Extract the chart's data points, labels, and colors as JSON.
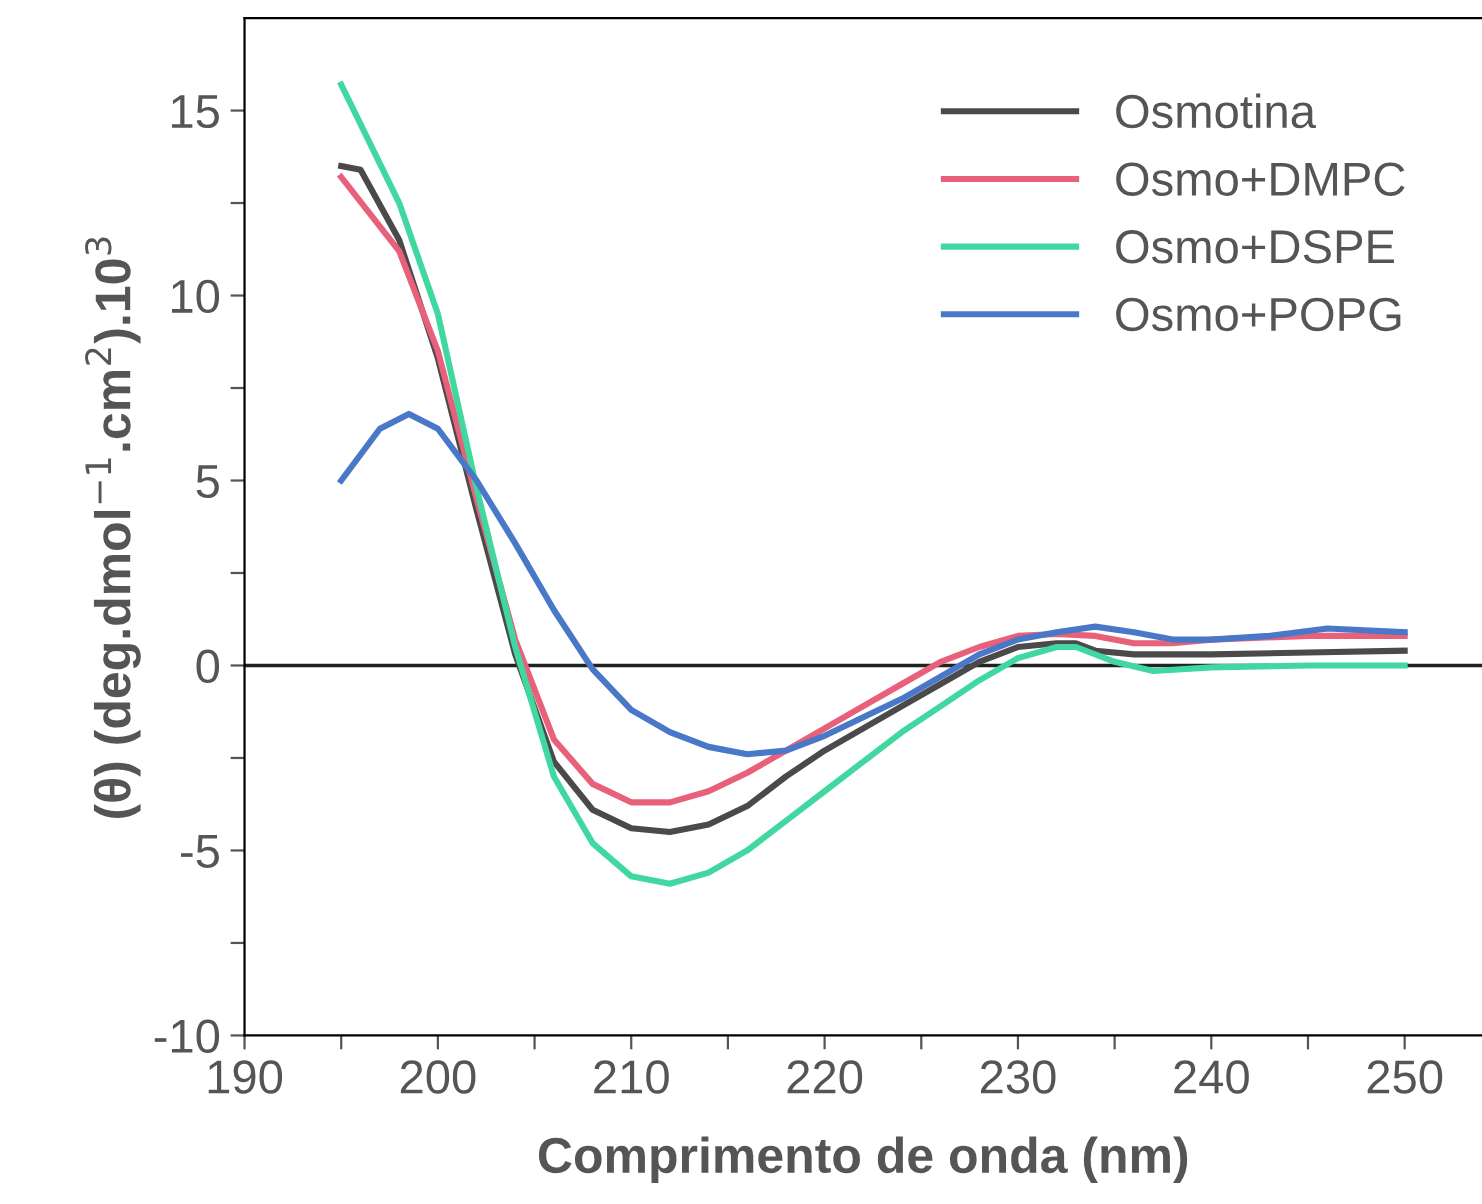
{
  "chart_data": {
    "type": "line",
    "xlabel": "Comprimento de onda (nm)",
    "ylabel": "(θ) (deg.dmol$^{−1}$.cm$^{2}$).10$^{3}$",
    "xlim": [
      190,
      254
    ],
    "ylim": [
      -10,
      17.5
    ],
    "xticks": [
      190,
      {
        "value": 195,
        "label": null
      },
      200,
      {
        "value": 205,
        "label": null
      },
      210,
      {
        "value": 215,
        "label": null
      },
      220,
      {
        "value": 225,
        "label": null
      },
      230,
      {
        "value": 235,
        "label": null
      },
      240,
      {
        "value": 245,
        "label": null
      },
      250
    ],
    "yticks": [
      -10,
      {
        "value": -7.5,
        "label": null
      },
      -5,
      {
        "value": -2.5,
        "label": null
      },
      0,
      {
        "value": 2.5,
        "label": null
      },
      5,
      {
        "value": 7.5,
        "label": null
      },
      10,
      {
        "value": 12.5,
        "label": null
      },
      15
    ],
    "grid": false,
    "legend": "top right",
    "marker": "none",
    "line_style": "solid",
    "ref_lines": [
      {
        "axis": "y",
        "value": 0,
        "color": "#222222"
      }
    ],
    "series": [
      {
        "name": "Osmotina",
        "color": "#4a4a4a",
        "x": [
          195,
          196,
          198,
          200,
          202,
          204,
          206,
          208,
          210,
          212,
          214,
          216,
          218,
          220,
          222,
          224,
          226,
          228,
          230,
          232,
          233,
          234,
          236,
          240,
          245,
          250
        ],
        "values": [
          13.5,
          13.4,
          11.5,
          8.3,
          4.2,
          0.3,
          -2.6,
          -3.9,
          -4.4,
          -4.5,
          -4.3,
          -3.8,
          -3.0,
          -2.3,
          -1.7,
          -1.1,
          -0.5,
          0.1,
          0.5,
          0.6,
          0.6,
          0.4,
          0.3,
          0.3,
          0.35,
          0.4
        ]
      },
      {
        "name": "Osmo+DMPC",
        "color": "#e8607a",
        "x": [
          195,
          198,
          200,
          202,
          204,
          206,
          208,
          210,
          212,
          214,
          216,
          218,
          220,
          222,
          224,
          226,
          228,
          230,
          232,
          234,
          236,
          238,
          240,
          245,
          250
        ],
        "values": [
          13.2,
          11.2,
          8.5,
          4.5,
          0.7,
          -2.0,
          -3.2,
          -3.7,
          -3.7,
          -3.4,
          -2.9,
          -2.3,
          -1.7,
          -1.1,
          -0.5,
          0.1,
          0.5,
          0.8,
          0.85,
          0.8,
          0.6,
          0.6,
          0.7,
          0.8,
          0.8
        ]
      },
      {
        "name": "Osmo+DSPE",
        "color": "#40d8a0",
        "x": [
          195,
          198,
          200,
          202,
          204,
          206,
          208,
          210,
          212,
          214,
          216,
          218,
          220,
          222,
          224,
          226,
          228,
          230,
          232,
          233,
          235,
          237,
          240,
          245,
          250
        ],
        "values": [
          15.7,
          12.5,
          9.5,
          4.8,
          0.5,
          -3.0,
          -4.8,
          -5.7,
          -5.9,
          -5.6,
          -5.0,
          -4.2,
          -3.4,
          -2.6,
          -1.8,
          -1.1,
          -0.4,
          0.2,
          0.5,
          0.5,
          0.1,
          -0.15,
          -0.05,
          0.0,
          0.0
        ]
      },
      {
        "name": "Osmo+POPG",
        "color": "#4a78c8",
        "x": [
          195,
          197,
          198.5,
          200,
          202,
          204,
          206,
          208,
          210,
          212,
          214,
          216,
          218,
          220,
          222,
          224,
          226,
          228,
          230,
          232,
          234,
          236,
          238,
          240,
          243,
          246,
          250
        ],
        "values": [
          5.0,
          6.4,
          6.8,
          6.4,
          5.0,
          3.3,
          1.5,
          -0.1,
          -1.2,
          -1.8,
          -2.2,
          -2.4,
          -2.3,
          -1.9,
          -1.4,
          -0.9,
          -0.3,
          0.3,
          0.7,
          0.9,
          1.05,
          0.9,
          0.7,
          0.7,
          0.8,
          1.0,
          0.9
        ]
      }
    ]
  }
}
